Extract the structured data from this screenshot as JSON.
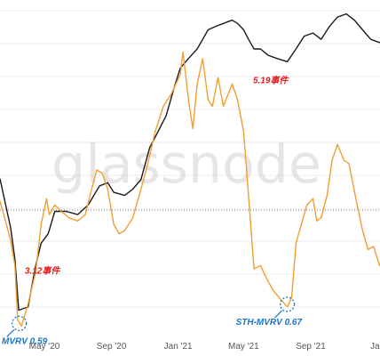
{
  "chart_data": {
    "type": "line",
    "title": "",
    "xlabel": "",
    "ylabel": "",
    "x_ticks": [
      "May '20",
      "Sep '20",
      "Jan '21",
      "May '21",
      "Sep '21",
      "Jan"
    ],
    "reference_line": {
      "value": 1.0,
      "style": "dotted"
    },
    "grid": true,
    "watermark": "glassnode",
    "series": [
      {
        "color": "#1a1a1a",
        "points": [
          [
            "2020-01-01",
            0.58
          ],
          [
            "2020-01-20",
            0.52
          ],
          [
            "2020-02-10",
            0.47
          ],
          [
            "2020-02-20",
            0.39
          ],
          [
            "2020-02-29",
            0.32
          ],
          [
            "2020-03-08",
            0.22
          ],
          [
            "2020-03-15",
            0.06
          ],
          [
            "2020-04-01",
            0.07
          ],
          [
            "2020-04-15",
            0.2
          ],
          [
            "2020-04-25",
            0.27
          ],
          [
            "2020-05-08",
            0.3
          ],
          [
            "2020-05-20",
            0.37
          ],
          [
            "2020-06-10",
            0.37
          ],
          [
            "2020-07-01",
            0.36
          ],
          [
            "2020-07-20",
            0.39
          ],
          [
            "2020-08-10",
            0.45
          ],
          [
            "2020-08-25",
            0.46
          ],
          [
            "2020-09-05",
            0.43
          ],
          [
            "2020-09-25",
            0.42
          ],
          [
            "2020-10-10",
            0.44
          ],
          [
            "2020-10-25",
            0.47
          ],
          [
            "2020-11-10",
            0.57
          ],
          [
            "2020-11-25",
            0.62
          ],
          [
            "2020-12-10",
            0.67
          ],
          [
            "2020-12-25",
            0.76
          ],
          [
            "2021-01-05",
            0.82
          ],
          [
            "2021-01-20",
            0.85
          ],
          [
            "2021-02-05",
            0.88
          ],
          [
            "2021-02-15",
            0.91
          ],
          [
            "2021-02-25",
            0.94
          ],
          [
            "2021-03-10",
            0.95
          ],
          [
            "2021-03-25",
            0.96
          ],
          [
            "2021-04-10",
            0.97
          ],
          [
            "2021-04-20",
            0.96
          ],
          [
            "2021-05-01",
            0.94
          ],
          [
            "2021-05-10",
            0.91
          ],
          [
            "2021-05-20",
            0.88
          ],
          [
            "2021-06-01",
            0.88
          ],
          [
            "2021-06-15",
            0.86
          ],
          [
            "2021-07-01",
            0.85
          ],
          [
            "2021-07-20",
            0.84
          ],
          [
            "2021-08-05",
            0.88
          ],
          [
            "2021-08-20",
            0.92
          ],
          [
            "2021-09-05",
            0.93
          ],
          [
            "2021-09-20",
            0.91
          ],
          [
            "2021-10-05",
            0.95
          ],
          [
            "2021-10-20",
            0.98
          ],
          [
            "2021-11-05",
            0.99
          ],
          [
            "2021-11-20",
            0.97
          ],
          [
            "2021-12-05",
            0.94
          ],
          [
            "2021-12-20",
            0.91
          ],
          [
            "2022-01-05",
            0.9
          ],
          [
            "2022-01-20",
            0.91
          ]
        ]
      },
      {
        "color": "#f0a030",
        "points": [
          [
            "2020-01-01",
            0.53
          ],
          [
            "2020-01-15",
            0.48
          ],
          [
            "2020-02-01",
            0.45
          ],
          [
            "2020-02-15",
            0.37
          ],
          [
            "2020-02-29",
            0.28
          ],
          [
            "2020-03-08",
            0.2
          ],
          [
            "2020-03-13",
            0.03
          ],
          [
            "2020-03-20",
            0.01
          ],
          [
            "2020-04-01",
            0.08
          ],
          [
            "2020-04-15",
            0.18
          ],
          [
            "2020-04-25",
            0.33
          ],
          [
            "2020-05-05",
            0.41
          ],
          [
            "2020-05-10",
            0.36
          ],
          [
            "2020-05-20",
            0.39
          ],
          [
            "2020-06-01",
            0.37
          ],
          [
            "2020-06-15",
            0.35
          ],
          [
            "2020-07-01",
            0.34
          ],
          [
            "2020-07-15",
            0.36
          ],
          [
            "2020-07-25",
            0.43
          ],
          [
            "2020-08-05",
            0.5
          ],
          [
            "2020-08-15",
            0.49
          ],
          [
            "2020-08-25",
            0.44
          ],
          [
            "2020-09-05",
            0.33
          ],
          [
            "2020-09-15",
            0.3
          ],
          [
            "2020-09-25",
            0.31
          ],
          [
            "2020-10-10",
            0.35
          ],
          [
            "2020-10-25",
            0.44
          ],
          [
            "2020-11-05",
            0.51
          ],
          [
            "2020-11-20",
            0.62
          ],
          [
            "2020-12-05",
            0.7
          ],
          [
            "2020-12-20",
            0.74
          ],
          [
            "2021-01-05",
            0.8
          ],
          [
            "2021-01-10",
            0.87
          ],
          [
            "2021-01-20",
            0.72
          ],
          [
            "2021-01-28",
            0.63
          ],
          [
            "2021-02-05",
            0.77
          ],
          [
            "2021-02-15",
            0.85
          ],
          [
            "2021-02-25",
            0.72
          ],
          [
            "2021-03-05",
            0.7
          ],
          [
            "2021-03-15",
            0.79
          ],
          [
            "2021-03-25",
            0.7
          ],
          [
            "2021-04-10",
            0.77
          ],
          [
            "2021-04-20",
            0.72
          ],
          [
            "2021-05-01",
            0.62
          ],
          [
            "2021-05-10",
            0.42
          ],
          [
            "2021-05-20",
            0.19
          ],
          [
            "2021-06-01",
            0.2
          ],
          [
            "2021-06-15",
            0.15
          ],
          [
            "2021-06-25",
            0.12
          ],
          [
            "2021-07-05",
            0.1
          ],
          [
            "2021-07-20",
            0.07
          ],
          [
            "2021-07-28",
            0.1
          ],
          [
            "2021-08-05",
            0.27
          ],
          [
            "2021-08-15",
            0.33
          ],
          [
            "2021-08-25",
            0.39
          ],
          [
            "2021-09-05",
            0.41
          ],
          [
            "2021-09-12",
            0.34
          ],
          [
            "2021-09-20",
            0.35
          ],
          [
            "2021-10-01",
            0.42
          ],
          [
            "2021-10-10",
            0.53
          ],
          [
            "2021-10-20",
            0.58
          ],
          [
            "2021-11-01",
            0.53
          ],
          [
            "2021-11-10",
            0.52
          ],
          [
            "2021-11-25",
            0.39
          ],
          [
            "2021-12-05",
            0.31
          ],
          [
            "2021-12-15",
            0.25
          ],
          [
            "2021-12-25",
            0.26
          ],
          [
            "2022-01-05",
            0.2
          ],
          [
            "2022-01-20",
            0.26
          ]
        ]
      }
    ],
    "annotations": [
      {
        "text": "5.19事件",
        "date": "2021-06-10",
        "y": 0.75,
        "color": "#e02020"
      },
      {
        "text": "3.12事件",
        "date": "2020-04-08",
        "y": 0.2,
        "color": "#e02020"
      },
      {
        "text": "STH-MVRV 0.67",
        "date": "2021-07-20",
        "y": 0.07,
        "color": "#1a73c8"
      },
      {
        "text": "MVRV 0.59",
        "date": "2020-03-16",
        "y": 0.01,
        "color": "#1a73c8"
      }
    ]
  }
}
